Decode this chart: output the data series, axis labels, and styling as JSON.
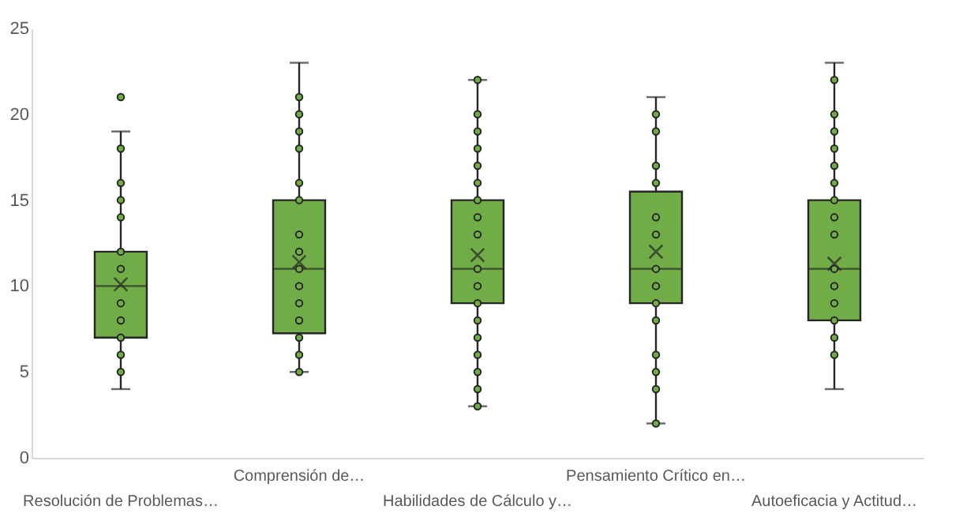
{
  "chart_data": {
    "type": "box",
    "categories": [
      "Resolución de Problemas…",
      "Comprensión de…",
      "Habilidades de Cálculo y…",
      "Pensamiento Crítico en…",
      "Autoeficacia y Actitud…"
    ],
    "color": "#70ad47",
    "ylim": [
      0,
      25
    ],
    "yticks": [
      0,
      5,
      10,
      15,
      20,
      25
    ],
    "grid": false,
    "boxes": [
      {
        "low": 4,
        "q1": 7,
        "median": 10,
        "q3": 12,
        "high": 19,
        "mean": 10.1,
        "outliers": [
          21
        ]
      },
      {
        "low": 5,
        "q1": 7.25,
        "median": 11,
        "q3": 15,
        "high": 23,
        "mean": 11.4
      },
      {
        "low": 3,
        "q1": 9,
        "median": 11,
        "q3": 15,
        "high": 22,
        "mean": 11.8
      },
      {
        "low": 2,
        "q1": 9,
        "median": 11,
        "q3": 15.5,
        "high": 21,
        "mean": 12
      },
      {
        "low": 4,
        "q1": 8,
        "median": 11,
        "q3": 15,
        "high": 23,
        "mean": 11.3
      }
    ],
    "series": [
      {
        "type": "scatter",
        "marker": "circle",
        "color": "#70ad47",
        "x": [
          "Resolución de Problemas…",
          "Resolución de Problemas…",
          "Resolución de Problemas…",
          "Resolución de Problemas…",
          "Resolución de Problemas…",
          "Resolución de Problemas…",
          "Resolución de Problemas…",
          "Resolución de Problemas…",
          "Resolución de Problemas…",
          "Resolución de Problemas…",
          "Resolución de Problemas…",
          "Comprensión de…",
          "Comprensión de…",
          "Comprensión de…",
          "Comprensión de…",
          "Comprensión de…",
          "Comprensión de…",
          "Comprensión de…",
          "Comprensión de…",
          "Comprensión de…",
          "Comprensión de…",
          "Comprensión de…",
          "Comprensión de…",
          "Comprensión de…",
          "Comprensión de…",
          "Comprensión de…",
          "Habilidades de Cálculo y…",
          "Habilidades de Cálculo y…",
          "Habilidades de Cálculo y…",
          "Habilidades de Cálculo y…",
          "Habilidades de Cálculo y…",
          "Habilidades de Cálculo y…",
          "Habilidades de Cálculo y…",
          "Habilidades de Cálculo y…",
          "Habilidades de Cálculo y…",
          "Habilidades de Cálculo y…",
          "Habilidades de Cálculo y…",
          "Habilidades de Cálculo y…",
          "Habilidades de Cálculo y…",
          "Habilidades de Cálculo y…",
          "Habilidades de Cálculo y…",
          "Habilidades de Cálculo y…",
          "Habilidades de Cálculo y…",
          "Habilidades de Cálculo y…",
          "Pensamiento Crítico en…",
          "Pensamiento Crítico en…",
          "Pensamiento Crítico en…",
          "Pensamiento Crítico en…",
          "Pensamiento Crítico en…",
          "Pensamiento Crítico en…",
          "Pensamiento Crítico en…",
          "Pensamiento Crítico en…",
          "Pensamiento Crítico en…",
          "Pensamiento Crítico en…",
          "Pensamiento Crítico en…",
          "Pensamiento Crítico en…",
          "Pensamiento Crítico en…",
          "Pensamiento Crítico en…",
          "Autoeficacia y Actitud…",
          "Autoeficacia y Actitud…",
          "Autoeficacia y Actitud…",
          "Autoeficacia y Actitud…",
          "Autoeficacia y Actitud…",
          "Autoeficacia y Actitud…",
          "Autoeficacia y Actitud…",
          "Autoeficacia y Actitud…",
          "Autoeficacia y Actitud…",
          "Autoeficacia y Actitud…",
          "Autoeficacia y Actitud…",
          "Autoeficacia y Actitud…",
          "Autoeficacia y Actitud…",
          "Autoeficacia y Actitud…",
          "Autoeficacia y Actitud…"
        ],
        "values": [
          5,
          6,
          7,
          8,
          9,
          11,
          12,
          14,
          15,
          16,
          18,
          5,
          6,
          7,
          8,
          9,
          10,
          11,
          12,
          13,
          15,
          16,
          18,
          19,
          20,
          21,
          3,
          4,
          5,
          6,
          7,
          8,
          9,
          10,
          11,
          13,
          14,
          15,
          16,
          17,
          18,
          19,
          20,
          22,
          2,
          4,
          5,
          6,
          8,
          9,
          10,
          11,
          13,
          14,
          16,
          17,
          19,
          20,
          6,
          7,
          8,
          9,
          10,
          11,
          13,
          14,
          15,
          16,
          17,
          18,
          19,
          20,
          22
        ]
      }
    ]
  }
}
